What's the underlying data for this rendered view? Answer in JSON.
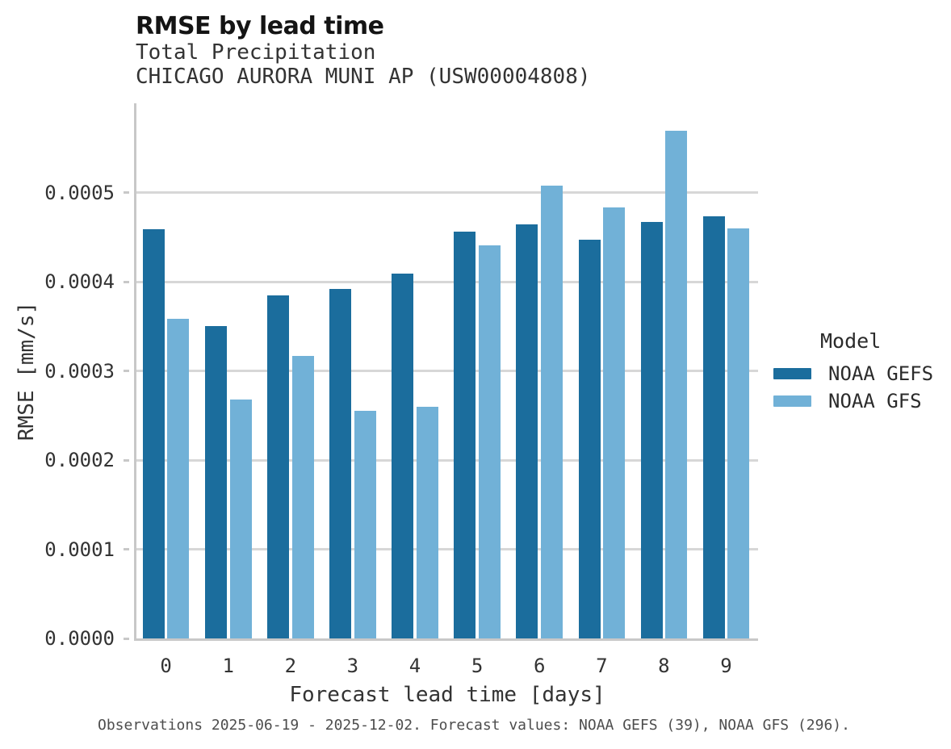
{
  "header": {
    "title": "RMSE by lead time",
    "subtitle_line1": "Total Precipitation",
    "subtitle_line2": "CHICAGO AURORA MUNI AP (USW00004808)"
  },
  "chart_data": {
    "type": "bar",
    "title": "RMSE by lead time",
    "subtitle": [
      "Total Precipitation",
      "CHICAGO AURORA MUNI AP (USW00004808)"
    ],
    "xlabel": "Forecast lead time [days]",
    "ylabel": "RMSE [mm/s]",
    "categories": [
      "0",
      "1",
      "2",
      "3",
      "4",
      "5",
      "6",
      "7",
      "8",
      "9"
    ],
    "series": [
      {
        "name": "NOAA GEFS",
        "color": "#1b6d9d",
        "values": [
          0.000459,
          0.00035,
          0.000385,
          0.000392,
          0.000409,
          0.000456,
          0.000464,
          0.000447,
          0.000467,
          0.000473
        ]
      },
      {
        "name": "NOAA GFS",
        "color": "#71b1d7",
        "values": [
          0.000358,
          0.000268,
          0.000317,
          0.000255,
          0.00026,
          0.000441,
          0.000508,
          0.000483,
          0.000569,
          0.00046
        ]
      }
    ],
    "ylim": [
      0,
      0.0006
    ],
    "yticks": [
      "0.0000",
      "0.0001",
      "0.0002",
      "0.0003",
      "0.0004",
      "0.0005"
    ],
    "grid": true,
    "legend": {
      "title": "Model",
      "position": "right"
    }
  },
  "caption": "Observations 2025-06-19 - 2025-12-02. Forecast values: NOAA GEFS (39), NOAA GFS (296).",
  "colors": {
    "bar_gefs": "#1b6d9d",
    "bar_gfs": "#71b1d7",
    "gridline": "#d7d7d7",
    "axis": "#c8c8c8"
  }
}
